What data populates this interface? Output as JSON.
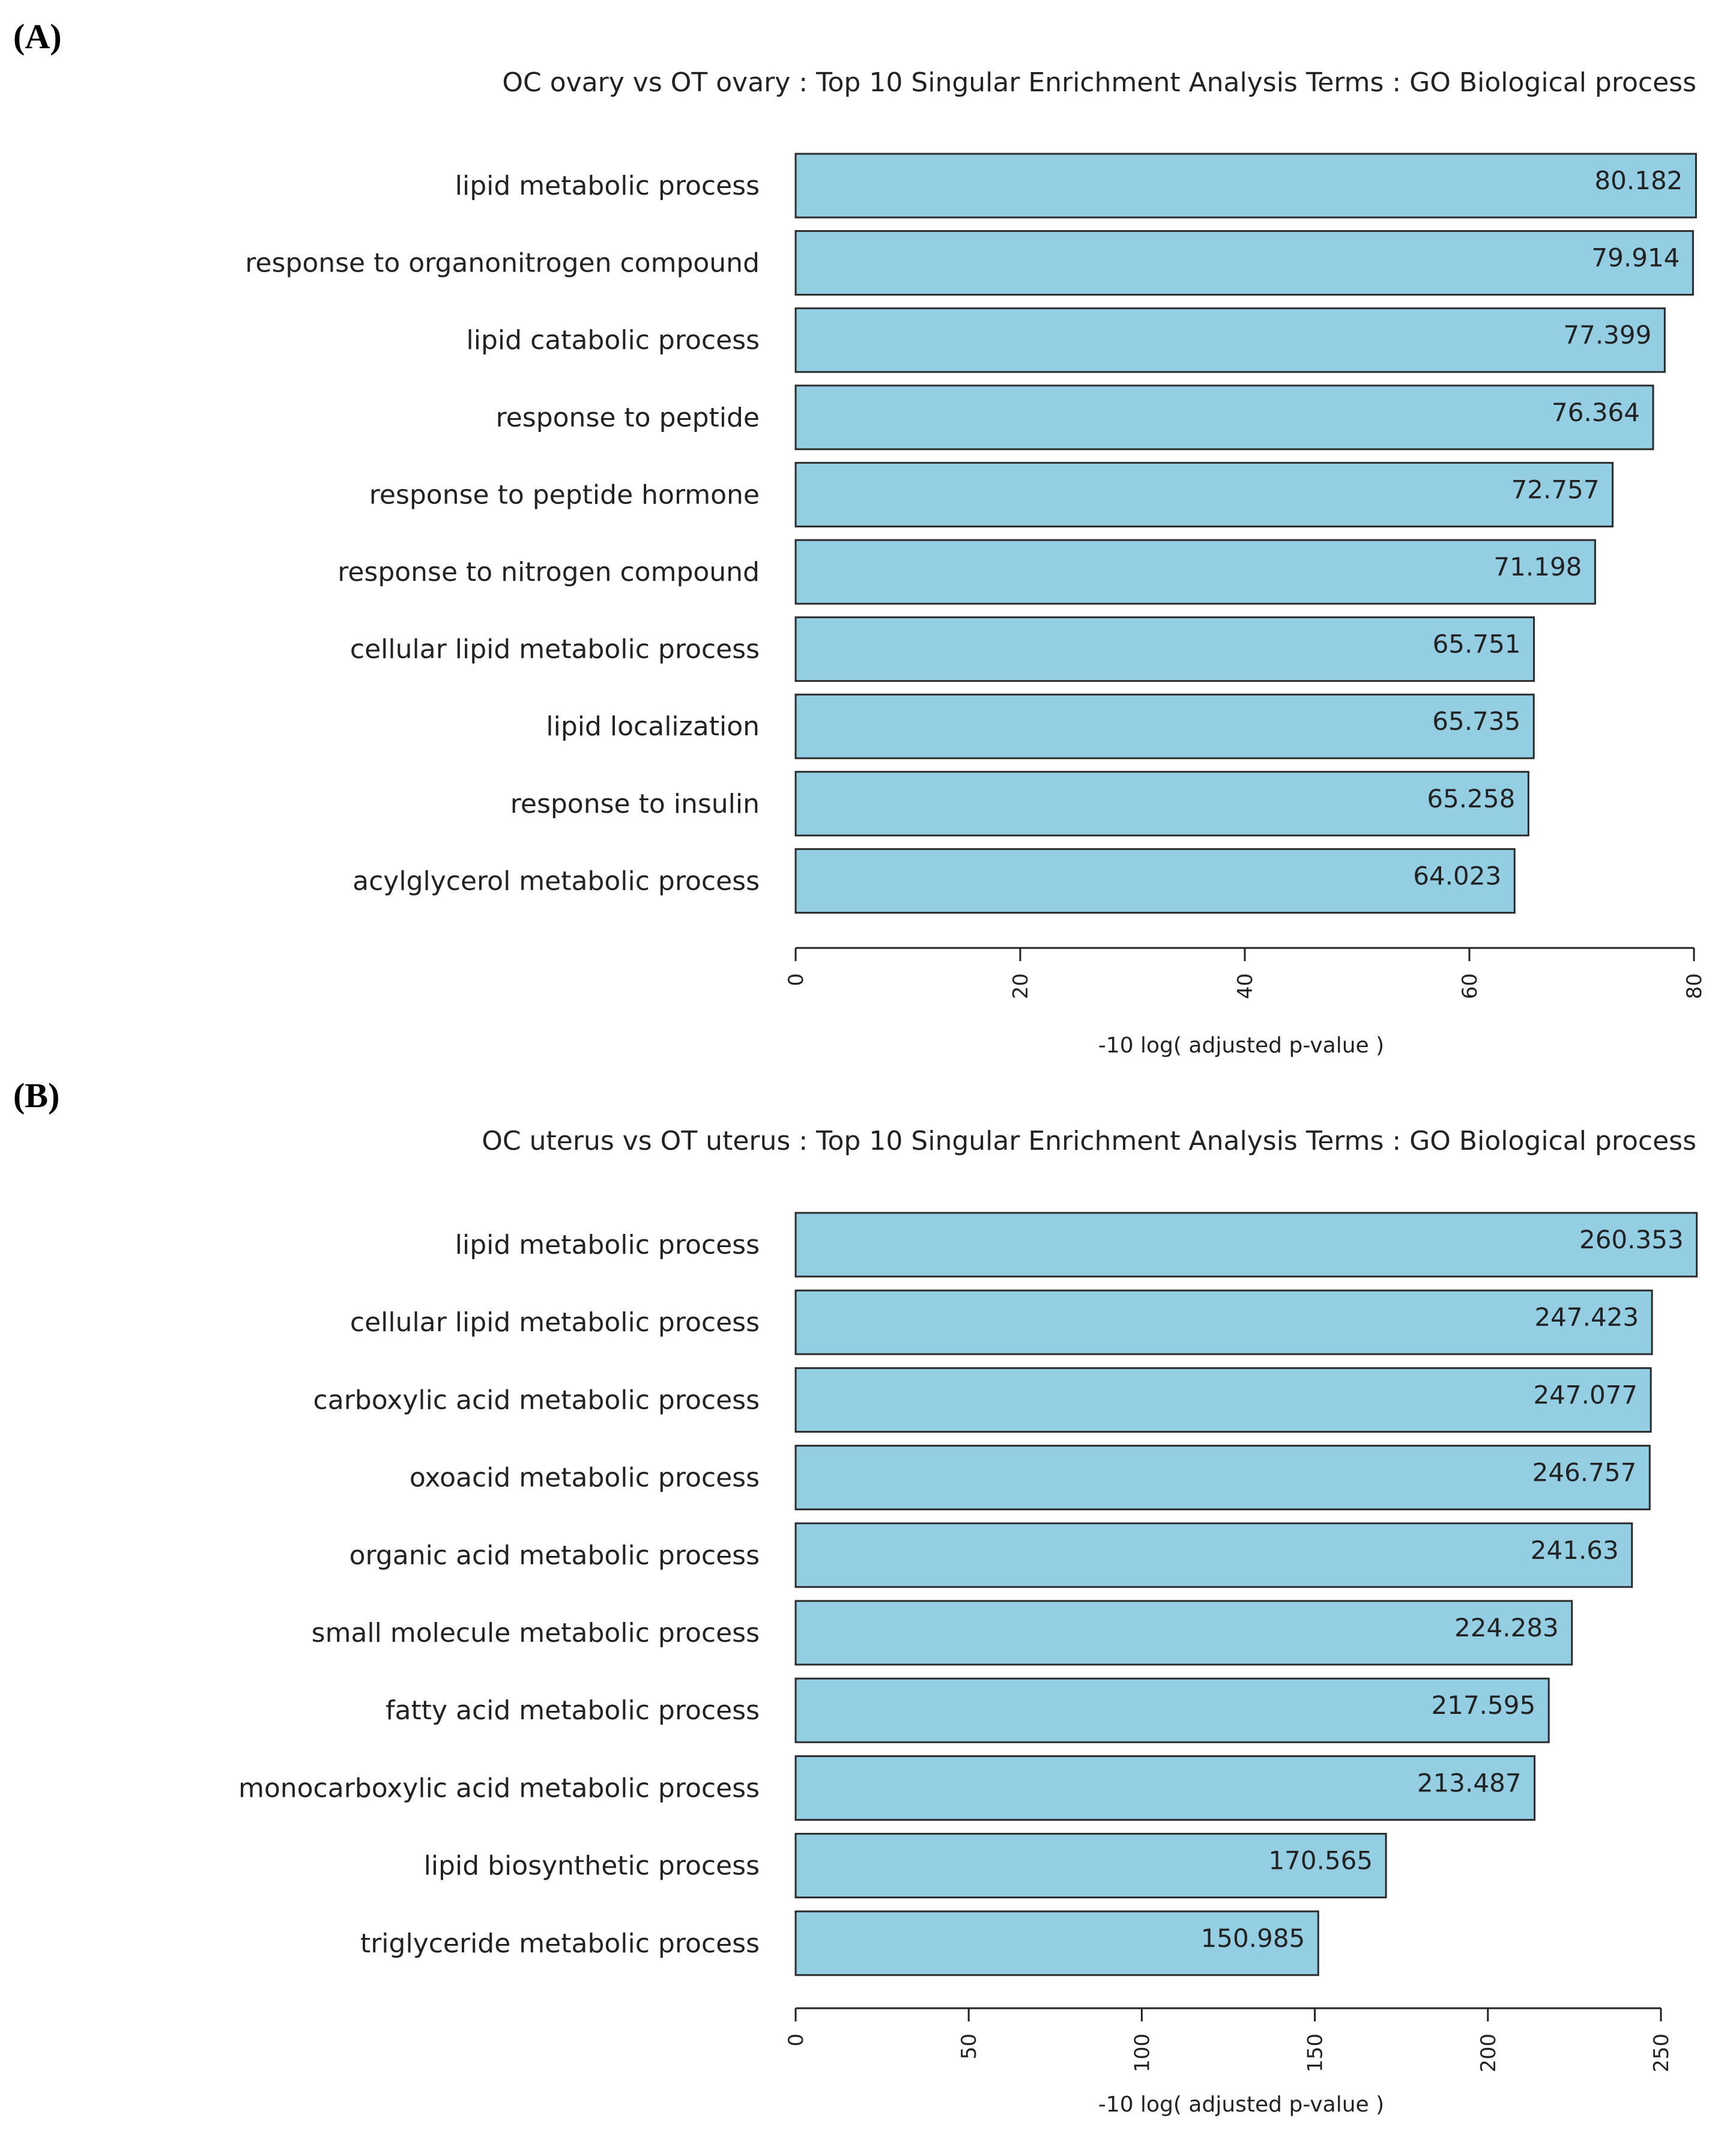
{
  "chart_data": [
    {
      "type": "bar",
      "orientation": "horizontal",
      "panel_label": "(A)",
      "title": "OC ovary vs OT ovary : Top 10 Singular Enrichment Analysis Terms : GO Biological process",
      "xlabel": "-10 log( adjusted p-value )",
      "ylabel": "",
      "xlim": [
        0,
        80
      ],
      "xticks": [
        0,
        20,
        40,
        60,
        80
      ],
      "bar_color": "#94CEE3",
      "categories": [
        "lipid metabolic process",
        "response to organonitrogen compound",
        "lipid catabolic process",
        "response to peptide",
        "response to peptide hormone",
        "response to nitrogen compound",
        "cellular lipid metabolic process",
        "lipid localization",
        "response to insulin",
        "acylglycerol metabolic process"
      ],
      "values": [
        80.182,
        79.914,
        77.399,
        76.364,
        72.757,
        71.198,
        65.751,
        65.735,
        65.258,
        64.023
      ],
      "value_labels": [
        "80.182",
        "79.914",
        "77.399",
        "76.364",
        "72.757",
        "71.198",
        "65.751",
        "65.735",
        "65.258",
        "64.023"
      ]
    },
    {
      "type": "bar",
      "orientation": "horizontal",
      "panel_label": "(B)",
      "title": "OC uterus vs OT uterus : Top 10 Singular Enrichment Analysis Terms : GO Biological process",
      "xlabel": "-10 log( adjusted p-value )",
      "ylabel": "",
      "xlim": [
        0,
        250
      ],
      "xticks": [
        0,
        50,
        100,
        150,
        200,
        250
      ],
      "bar_color": "#94CEE3",
      "categories": [
        "lipid metabolic process",
        "cellular lipid metabolic process",
        "carboxylic acid metabolic process",
        "oxoacid metabolic process",
        "organic acid metabolic process",
        "small molecule metabolic process",
        "fatty acid metabolic process",
        "monocarboxylic acid metabolic process",
        "lipid biosynthetic process",
        "triglyceride metabolic process"
      ],
      "values": [
        260.353,
        247.423,
        247.077,
        246.757,
        241.63,
        224.283,
        217.595,
        213.487,
        170.565,
        150.985
      ],
      "value_labels": [
        "260.353",
        "247.423",
        "247.077",
        "246.757",
        "241.63",
        "224.283",
        "217.595",
        "213.487",
        "170.565",
        "150.985"
      ]
    }
  ]
}
